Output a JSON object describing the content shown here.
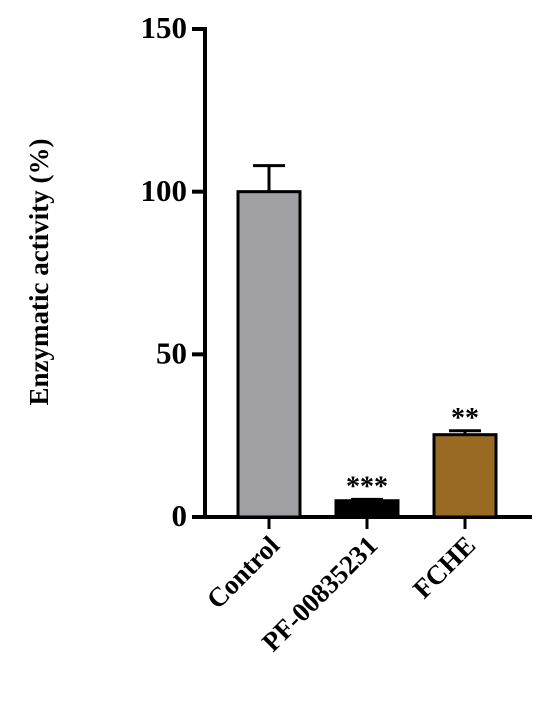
{
  "chart_data": {
    "type": "bar",
    "y_label": "Enzymatic activity (%)",
    "categories": [
      "Control",
      "PF-00835231",
      "FCHE"
    ],
    "values": [
      100,
      5,
      25.3
    ],
    "errors": [
      8,
      0.4,
      1.2
    ],
    "colors": [
      "#a0a0a4",
      "#000000",
      "#996a23"
    ],
    "value_annotations": [
      null,
      "***",
      "**"
    ],
    "ylim": [
      0,
      150
    ],
    "yticks": [
      0,
      50,
      100,
      150
    ],
    "grid": false
  }
}
